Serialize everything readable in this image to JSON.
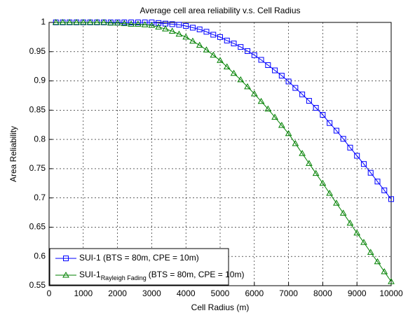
{
  "chart_data": {
    "type": "line",
    "title": "Average cell area reliability v.s. Cell Radius",
    "xlabel": "Cell Radius (m)",
    "ylabel": "Area Reliability",
    "x": [
      200,
      400,
      600,
      800,
      1000,
      1200,
      1400,
      1600,
      1800,
      2000,
      2200,
      2400,
      2600,
      2800,
      3000,
      3200,
      3400,
      3600,
      3800,
      4000,
      4200,
      4400,
      4600,
      4800,
      5000,
      5200,
      5400,
      5600,
      5800,
      6000,
      6200,
      6400,
      6600,
      6800,
      7000,
      7200,
      7400,
      7600,
      7800,
      8000,
      8200,
      8400,
      8600,
      8800,
      9000,
      9200,
      9400,
      9600,
      9800,
      10000
    ],
    "series": [
      {
        "name": "SUI-1 (BTS = 80m, CPE = 10m)",
        "color": "#0000ff",
        "marker": "square",
        "values": [
          1,
          1,
          1,
          1,
          1,
          1,
          1,
          1,
          1,
          1,
          1,
          1,
          1,
          1,
          1,
          0.999,
          0.998,
          0.997,
          0.996,
          0.994,
          0.991,
          0.988,
          0.984,
          0.979,
          0.975,
          0.969,
          0.964,
          0.958,
          0.951,
          0.944,
          0.936,
          0.927,
          0.918,
          0.909,
          0.899,
          0.888,
          0.877,
          0.866,
          0.854,
          0.842,
          0.828,
          0.815,
          0.801,
          0.786,
          0.772,
          0.758,
          0.743,
          0.728,
          0.713,
          0.698
        ]
      },
      {
        "name": "SUI-1",
        "name_subscript": "Rayleigh Fading",
        "name_suffix": "(BTS = 80m, CPE = 10m)",
        "color": "#008000",
        "marker": "triangle",
        "values": [
          1,
          1,
          1,
          1,
          1,
          1,
          1,
          1,
          0.999,
          0.999,
          0.998,
          0.997,
          0.997,
          0.996,
          0.995,
          0.992,
          0.989,
          0.985,
          0.98,
          0.975,
          0.968,
          0.961,
          0.953,
          0.944,
          0.935,
          0.924,
          0.913,
          0.902,
          0.89,
          0.878,
          0.865,
          0.852,
          0.838,
          0.824,
          0.81,
          0.793,
          0.776,
          0.759,
          0.742,
          0.725,
          0.708,
          0.691,
          0.674,
          0.657,
          0.64,
          0.624,
          0.607,
          0.591,
          0.574,
          0.557
        ]
      }
    ],
    "xlim": [
      0,
      10000
    ],
    "xticks": [
      0,
      1000,
      2000,
      3000,
      4000,
      5000,
      6000,
      7000,
      8000,
      9000,
      10000
    ],
    "ylim": [
      0.55,
      1
    ],
    "yticks": [
      0.55,
      0.6,
      0.65,
      0.7,
      0.75,
      0.8,
      0.85,
      0.9,
      0.95,
      1
    ],
    "grid": true,
    "legend": "lower left"
  }
}
